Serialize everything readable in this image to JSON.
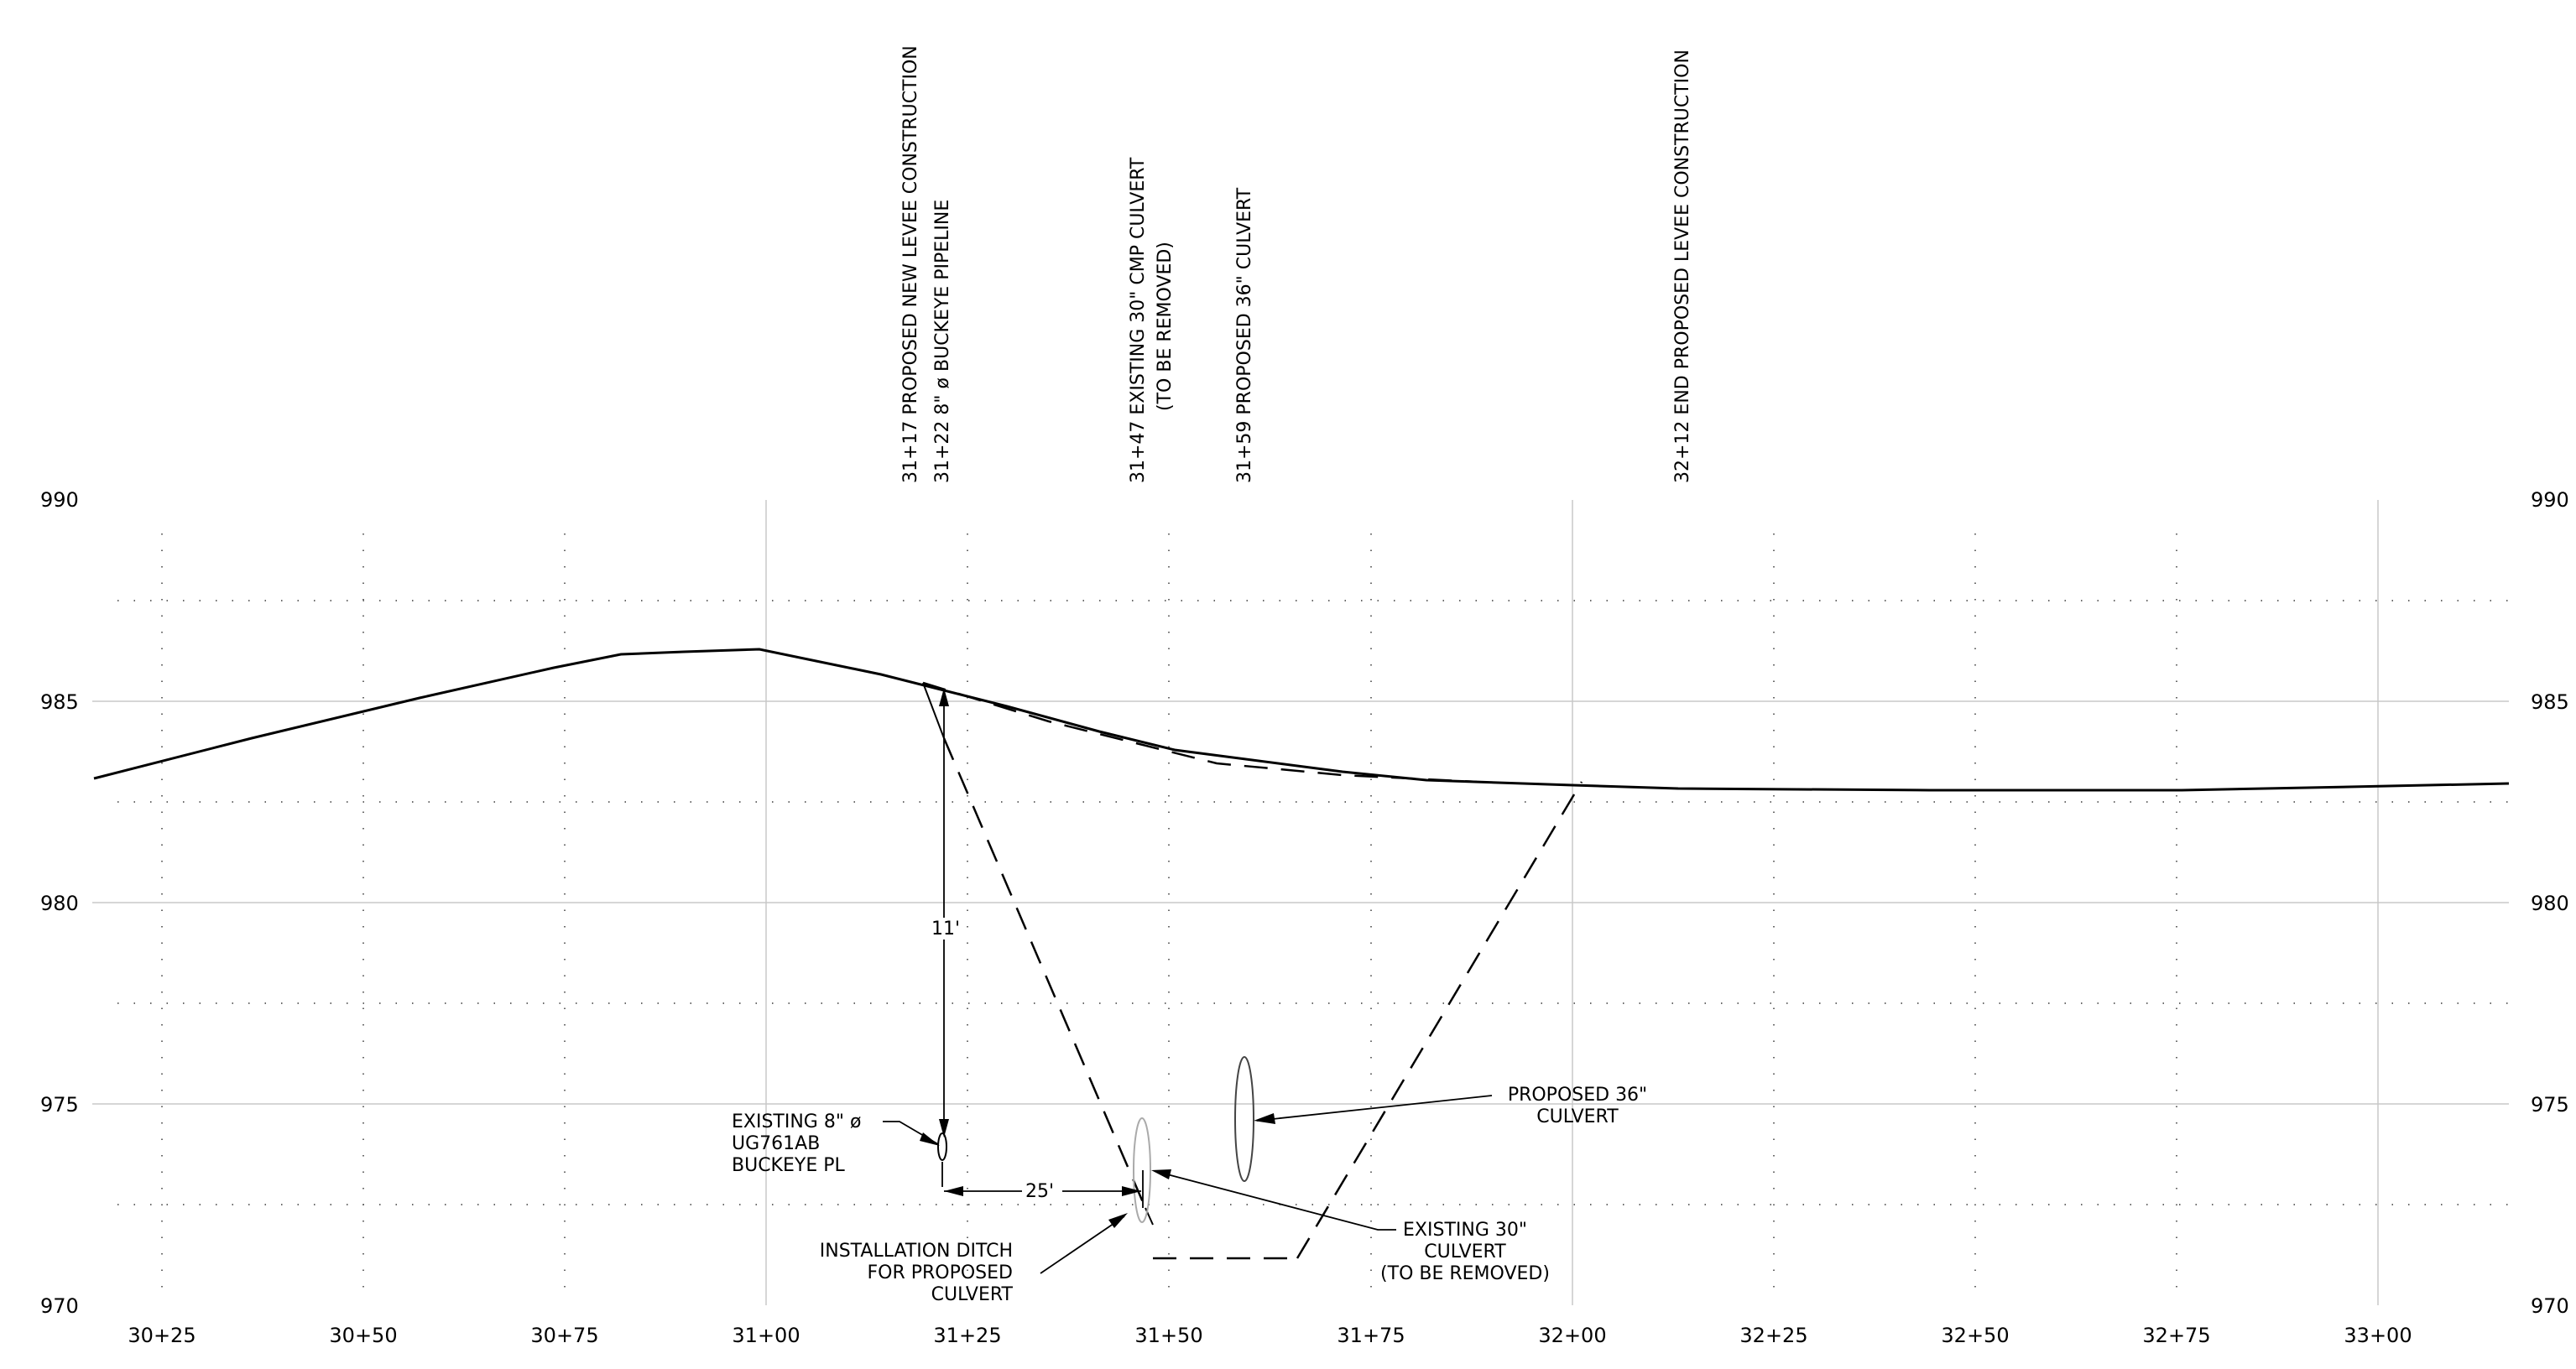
{
  "profile": {
    "elevation_labels": [
      "990",
      "985",
      "980",
      "975",
      "970"
    ],
    "station_labels": [
      "30+25",
      "30+50",
      "30+75",
      "31+00",
      "31+25",
      "31+50",
      "31+75",
      "32+00",
      "32+25",
      "32+50",
      "32+75",
      "33+00"
    ],
    "vertical_labels": [
      {
        "id": "l1",
        "lines": [
          "31+17 PROPOSED NEW LEVEE CONSTRUCTION"
        ]
      },
      {
        "id": "l2",
        "lines": [
          "31+22 8\" ø BUCKEYE PIPELINE"
        ]
      },
      {
        "id": "l3",
        "lines": [
          "31+47 EXISTING 30\" CMP CULVERT",
          "(TO BE REMOVED)"
        ]
      },
      {
        "id": "l4",
        "lines": [
          "31+59 PROPOSED 36\" CULVERT"
        ]
      },
      {
        "id": "l5",
        "lines": [
          "32+12 END PROPOSED LEVEE CONSTRUCTION"
        ]
      }
    ],
    "callouts": {
      "pipeline": [
        "EXISTING 8\" ø",
        "UG761AB",
        "BUCKEYE PL"
      ],
      "proposed_culvert": [
        "PROPOSED 36\"",
        "CULVERT"
      ],
      "existing_culvert": [
        "EXISTING 30\"",
        "CULVERT",
        "(TO BE REMOVED)"
      ],
      "ditch": [
        "INSTALLATION DITCH",
        "FOR PROPOSED",
        "CULVERT"
      ]
    },
    "dimensions": {
      "vertical": "11'",
      "horizontal": "25'"
    }
  }
}
